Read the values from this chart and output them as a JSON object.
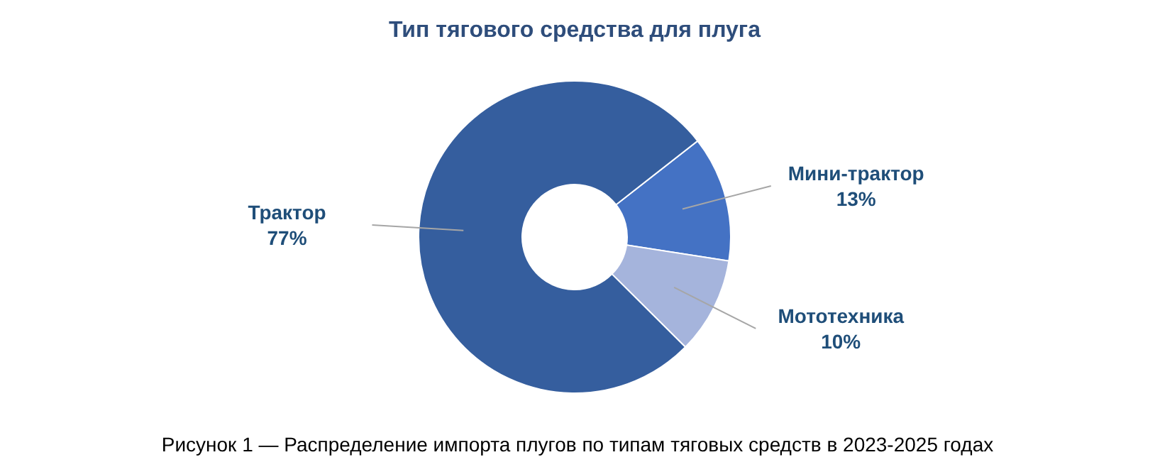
{
  "chart_data": {
    "type": "donut",
    "title": "Тип тягового средства для плуга",
    "categories": [
      "Мини-трактор",
      "Мототехника",
      "Трактор"
    ],
    "values": [
      13,
      10,
      77
    ],
    "value_labels": [
      "13%",
      "10%",
      "77%"
    ],
    "colors": [
      "#4472c4",
      "#a5b4dc",
      "#355e9e"
    ],
    "legend": false,
    "annotations": [
      "Рисунок 1 — Распределение импорта плугов по типам тяговых средств в 2023-2025 годах"
    ]
  }
}
